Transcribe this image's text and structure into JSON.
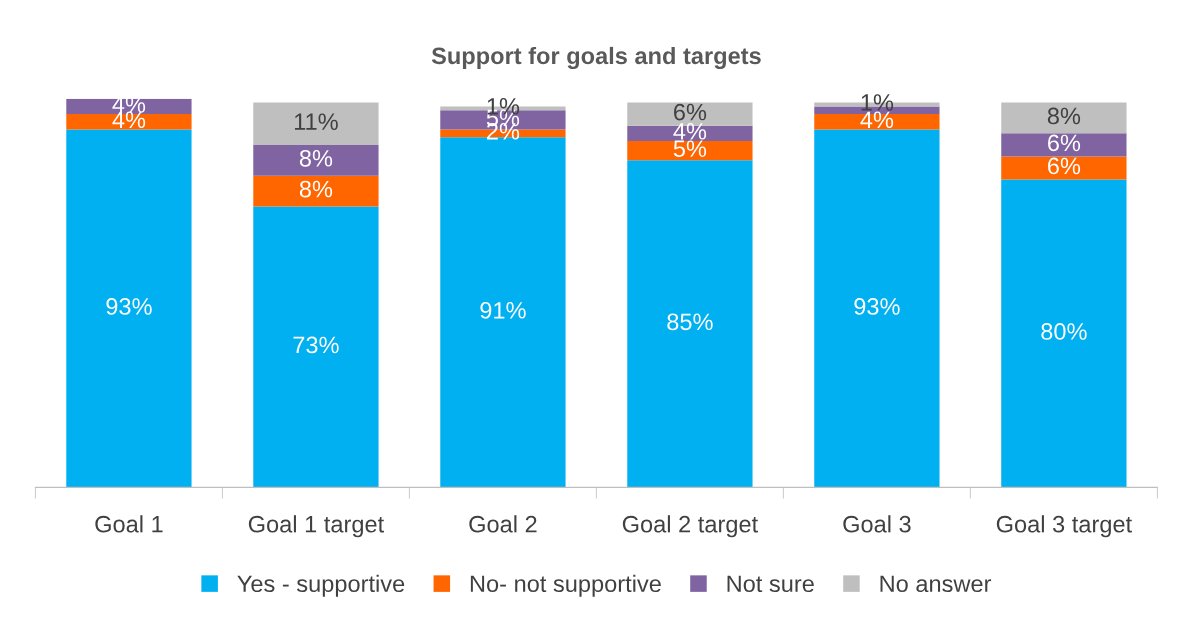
{
  "chart_data": {
    "type": "bar",
    "stacked": true,
    "title": "Support for goals and targets",
    "categories": [
      "Goal 1",
      "Goal 1 target",
      "Goal 2",
      "Goal 2 target",
      "Goal 3",
      "Goal 3 target"
    ],
    "legend": "bottom",
    "grid": false,
    "tick_labels": "x",
    "series": [
      {
        "name": "Yes - supportive",
        "color": "#00b0f0",
        "values": [
          93,
          73,
          91,
          85,
          93,
          80
        ],
        "value_labels": [
          "93%",
          "73%",
          "91%",
          "85%",
          "93%",
          "80%"
        ]
      },
      {
        "name": "No- not supportive",
        "color": "#ff6600",
        "values": [
          4,
          8,
          2,
          5,
          4,
          6
        ],
        "value_labels": [
          "4%",
          "8%",
          "2%",
          "5%",
          "4%",
          "6%"
        ]
      },
      {
        "name": "Not sure",
        "color": "#8064a2",
        "values": [
          4,
          8,
          5,
          4,
          2,
          6
        ],
        "value_labels": [
          "4%",
          "8%",
          "5%",
          "4%",
          null,
          "6%"
        ]
      },
      {
        "name": "No answer",
        "color": "#bfbfbf",
        "values": [
          null,
          11,
          1,
          6,
          1,
          8
        ],
        "value_labels": [
          null,
          "11%",
          "1%",
          "6%",
          "1%",
          "8%"
        ]
      }
    ]
  }
}
